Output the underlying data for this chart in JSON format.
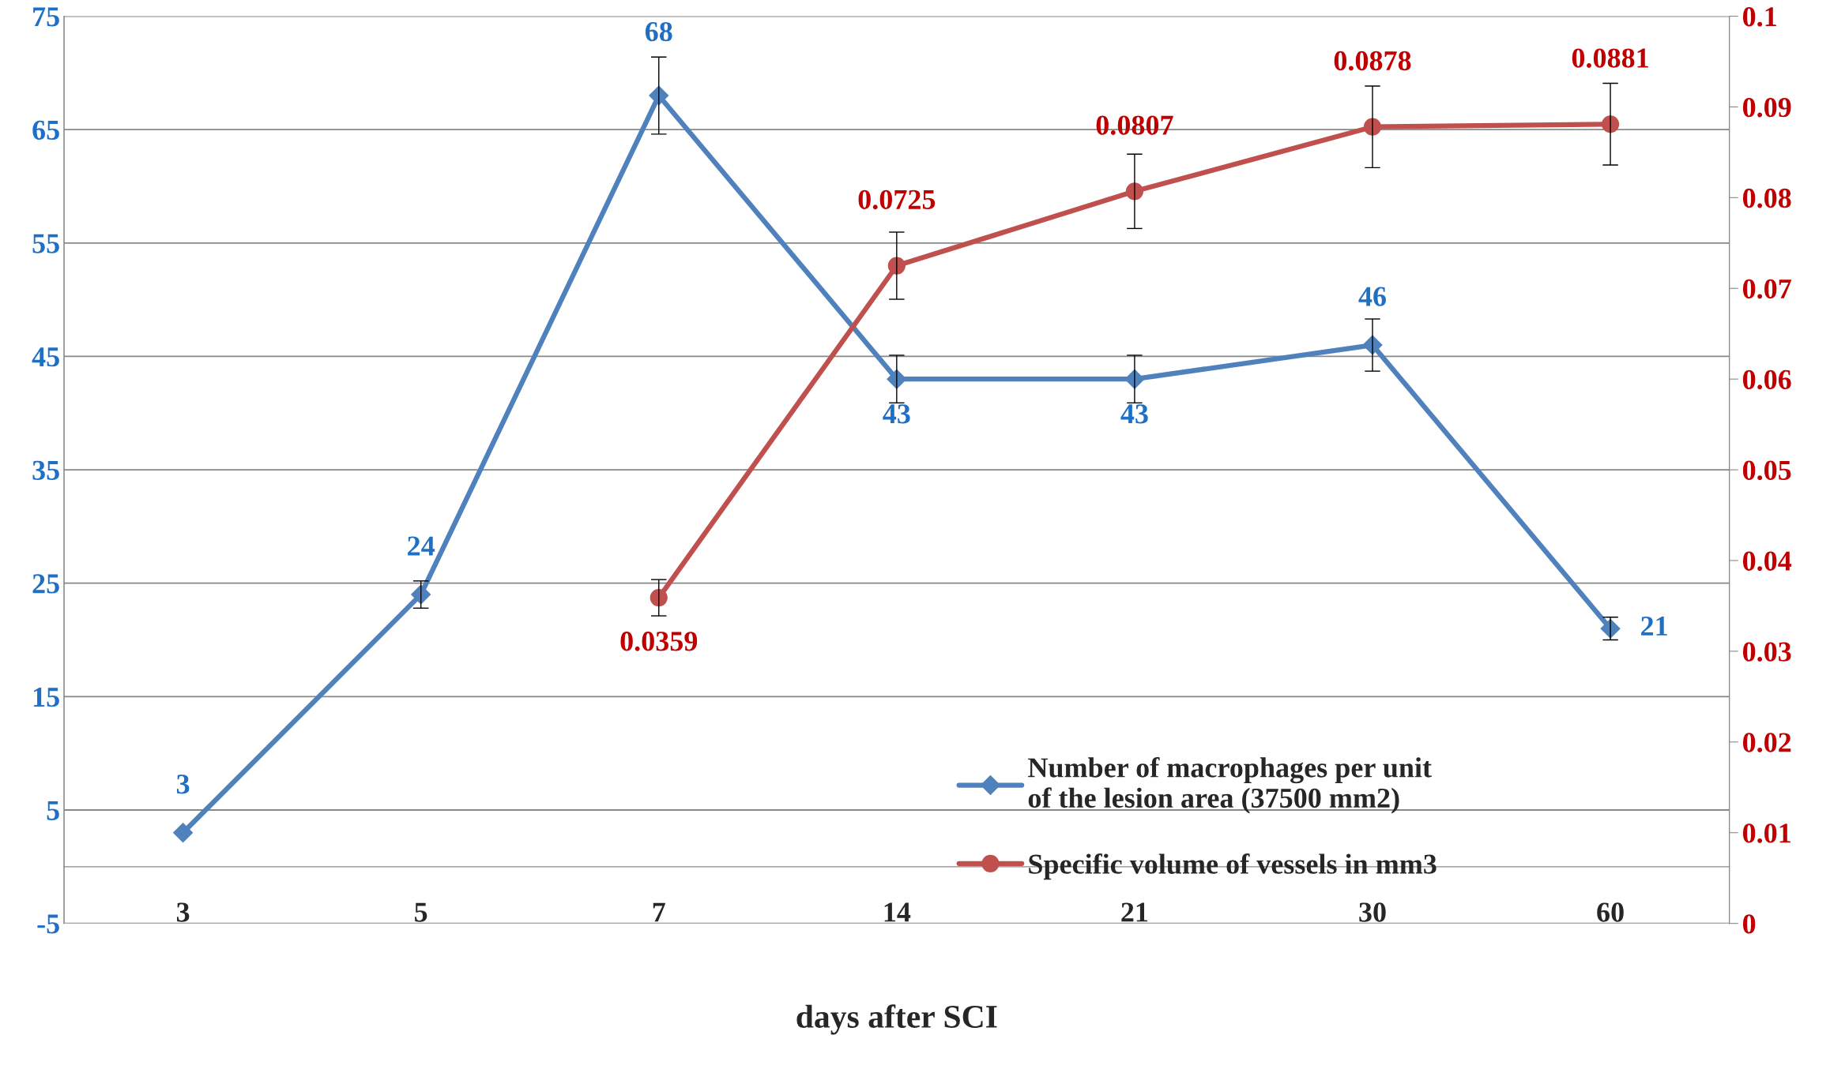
{
  "chart_data": {
    "type": "line",
    "xlabel": "days after SCI",
    "categories": [
      "3",
      "5",
      "7",
      "14",
      "21",
      "30",
      "60"
    ],
    "series": [
      {
        "name": "Number of macrophages per unit\nof the lesion area (37500 mm2)",
        "color": "#4f81bd",
        "marker": "diamond",
        "values": [
          3,
          24,
          68,
          43,
          43,
          46,
          21
        ],
        "errors": [
          null,
          1.2,
          3.4,
          2.1,
          2.1,
          2.3,
          1.0
        ]
      },
      {
        "name": "Specific volume of vessels in mm3",
        "color": "#c0504d",
        "marker": "circle",
        "axis": "y2",
        "values": [
          null,
          null,
          0.0359,
          0.0725,
          0.0807,
          0.0878,
          0.0881
        ],
        "errors": [
          null,
          null,
          0.002,
          0.0037,
          0.0041,
          0.0045,
          0.0045
        ]
      }
    ],
    "ylim": [
      -5,
      75
    ],
    "yticks": [
      -5,
      5,
      15,
      25,
      35,
      45,
      55,
      65,
      75
    ],
    "y2lim": [
      0,
      0.1
    ],
    "y2ticks": [
      0,
      0.01,
      0.02,
      0.03,
      0.04,
      0.05,
      0.06,
      0.07,
      0.08,
      0.09,
      0.1
    ],
    "data_labels": true,
    "grid": "y",
    "legend": "bottom right",
    "line_style": "solid"
  }
}
